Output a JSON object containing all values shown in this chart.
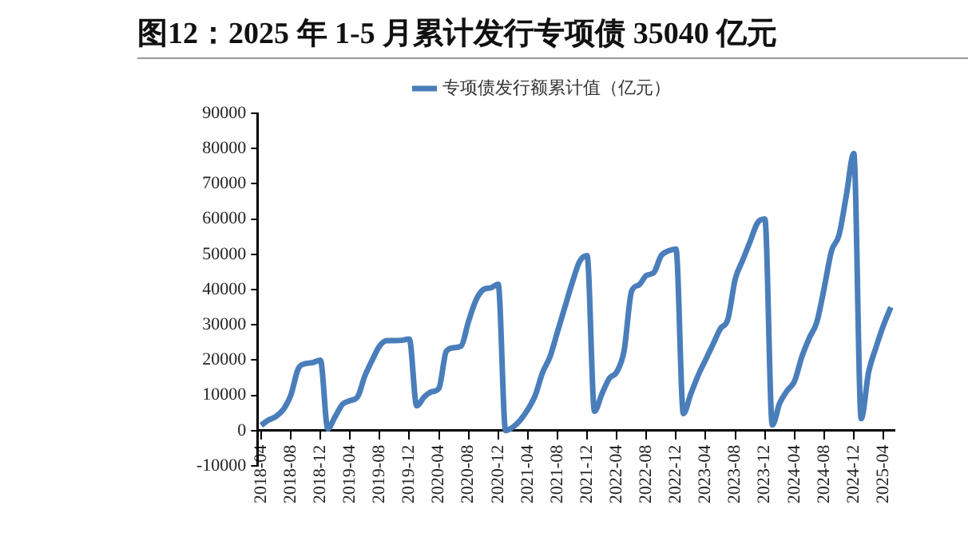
{
  "chart_data": {
    "type": "line",
    "title": "图12：2025 年 1-5 月累计发行专项债 35040 亿元",
    "categories": [
      "2018-04",
      null,
      null,
      null,
      "2018-08",
      null,
      null,
      null,
      "2018-12",
      null,
      null,
      null,
      "2019-04",
      null,
      null,
      null,
      "2019-08",
      null,
      null,
      null,
      "2019-12",
      null,
      null,
      null,
      "2020-04",
      null,
      null,
      null,
      "2020-08",
      null,
      null,
      null,
      "2020-12",
      null,
      null,
      null,
      "2021-04",
      null,
      null,
      null,
      "2021-08",
      null,
      null,
      null,
      "2021-12",
      null,
      null,
      null,
      "2022-04",
      null,
      null,
      null,
      "2022-08",
      null,
      null,
      null,
      "2022-12",
      null,
      null,
      null,
      "2023-04",
      null,
      null,
      null,
      "2023-08",
      null,
      null,
      null,
      "2023-12",
      null,
      null,
      null,
      "2024-04",
      null,
      null,
      null,
      "2024-08",
      null,
      null,
      null,
      "2024-12",
      null,
      null,
      null,
      "2025-04",
      null
    ],
    "series": [
      {
        "name": "专项债发行额累计值（亿元）",
        "color": "#4a7ebb",
        "values": [
          1500,
          3000,
          4000,
          6000,
          10000,
          17500,
          19000,
          19300,
          20000,
          500,
          4000,
          7500,
          8500,
          9500,
          15500,
          20000,
          24000,
          25500,
          25500,
          25600,
          26000,
          7000,
          9500,
          11000,
          12000,
          22500,
          23500,
          24000,
          31000,
          37000,
          40000,
          40500,
          41500,
          0,
          1000,
          3000,
          6000,
          10000,
          16500,
          21000,
          28000,
          35000,
          42000,
          48000,
          49600,
          5500,
          10400,
          14800,
          16600,
          22700,
          39500,
          41300,
          44000,
          44800,
          49600,
          51000,
          51500,
          4800,
          10400,
          15700,
          20100,
          24500,
          28900,
          31600,
          43000,
          48300,
          53600,
          58900,
          60000,
          1600,
          7800,
          11300,
          14000,
          21000,
          26300,
          30700,
          40400,
          51000,
          55400,
          66800,
          78600,
          3400,
          16600,
          23600,
          29800,
          35000
        ]
      }
    ],
    "ylim": [
      -10000,
      90000
    ],
    "yticks": [
      -10000,
      0,
      10000,
      20000,
      30000,
      40000,
      50000,
      60000,
      70000,
      80000,
      90000
    ],
    "grid": false,
    "legend": "top",
    "marker": "none",
    "line_style": "solid"
  }
}
